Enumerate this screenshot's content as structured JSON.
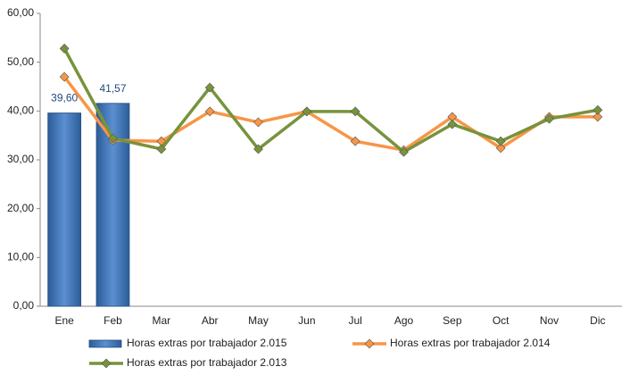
{
  "chart_data": {
    "type": "combo",
    "categories": [
      "Ene",
      "Feb",
      "Mar",
      "Abr",
      "May",
      "Jun",
      "Jul",
      "Ago",
      "Sep",
      "Oct",
      "Nov",
      "Dic"
    ],
    "ylim": [
      0,
      60
    ],
    "yticks": [
      {
        "value": 0,
        "label": "0,00"
      },
      {
        "value": 10,
        "label": "10,00"
      },
      {
        "value": 20,
        "label": "20,00"
      },
      {
        "value": 30,
        "label": "30,00"
      },
      {
        "value": 40,
        "label": "40,00"
      },
      {
        "value": 50,
        "label": "50,00"
      },
      {
        "value": 60,
        "label": "60,00"
      }
    ],
    "series": [
      {
        "name": "Horas extras por trabajador 2.015",
        "type": "bar",
        "color": "#4f81bd",
        "values": [
          39.6,
          41.57,
          null,
          null,
          null,
          null,
          null,
          null,
          null,
          null,
          null,
          null
        ],
        "value_labels": [
          "39,60",
          "41,57",
          null,
          null,
          null,
          null,
          null,
          null,
          null,
          null,
          null,
          null
        ]
      },
      {
        "name": "Horas extras por trabajador 2.014",
        "type": "line",
        "color": "#f79646",
        "values": [
          47.0,
          34.0,
          33.8,
          39.9,
          37.7,
          39.9,
          33.8,
          32.0,
          38.8,
          32.4,
          38.8,
          38.8
        ]
      },
      {
        "name": "Horas extras por trabajador 2.013",
        "type": "line",
        "color": "#77933c",
        "values": [
          52.8,
          34.4,
          32.2,
          44.8,
          32.2,
          39.9,
          39.9,
          31.6,
          37.3,
          33.8,
          38.4,
          40.2
        ]
      }
    ]
  }
}
